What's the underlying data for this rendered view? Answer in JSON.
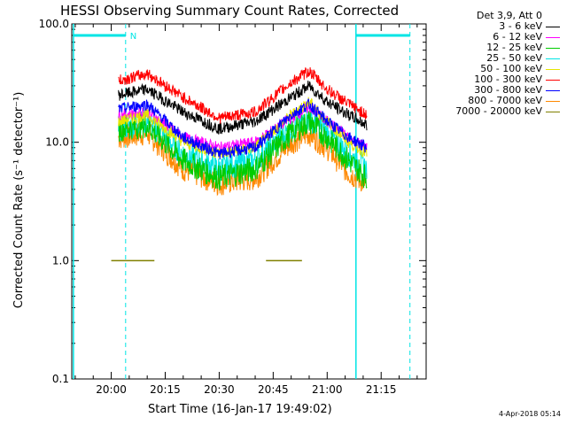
{
  "chart_data": {
    "type": "line",
    "title": "HESSI Observing Summary Count Rates, Corrected",
    "xlabel": "Start Time (16-Jan-17 19:49:02)",
    "ylabel": "Corrected Count Rate (s⁻¹ detector⁻¹)",
    "yscale": "log",
    "ylim": [
      0.1,
      100.0
    ],
    "xlim": [
      "19:49:02",
      "21:27:30"
    ],
    "x_ticks": [
      "20:00",
      "20:15",
      "20:30",
      "20:45",
      "21:00",
      "21:15"
    ],
    "y_ticks": [
      "0.1",
      "1.0",
      "10.0",
      "100.0"
    ],
    "legend_title": "Det 3,9, Att 0",
    "series": [
      {
        "name": "3 - 6 keV",
        "color": "#000000",
        "x": [
          "20:02",
          "20:10",
          "20:20",
          "20:30",
          "20:40",
          "20:50",
          "20:55",
          "21:00",
          "21:06",
          "21:11"
        ],
        "y": [
          25,
          28,
          18,
          13,
          15,
          24,
          30,
          22,
          17,
          14
        ]
      },
      {
        "name": "6 - 12 keV",
        "color": "#ff00ff",
        "x": [
          "20:02",
          "20:10",
          "20:20",
          "20:30",
          "20:40",
          "20:50",
          "20:55",
          "21:00",
          "21:06",
          "21:11"
        ],
        "y": [
          17,
          18,
          11,
          9,
          10,
          16,
          20,
          15,
          11,
          9
        ]
      },
      {
        "name": "12 - 25 keV",
        "color": "#00cc00",
        "x": [
          "20:02",
          "20:10",
          "20:20",
          "20:30",
          "20:40",
          "20:50",
          "20:55",
          "21:00",
          "21:06",
          "21:11"
        ],
        "y": [
          13,
          14,
          7,
          5,
          6,
          12,
          15,
          11,
          7,
          5
        ]
      },
      {
        "name": "25 - 50 keV",
        "color": "#00e5e5",
        "x": [
          "20:02",
          "20:10",
          "20:20",
          "20:30",
          "20:40",
          "20:50",
          "20:55",
          "21:00",
          "21:06",
          "21:11"
        ],
        "y": [
          13,
          15,
          8,
          6,
          7,
          13,
          16,
          12,
          8,
          6
        ]
      },
      {
        "name": "50 - 100 keV",
        "color": "#e5e500",
        "x": [
          "20:02",
          "20:10",
          "20:20",
          "20:30",
          "20:40",
          "20:50",
          "20:55",
          "21:00",
          "21:06",
          "21:11"
        ],
        "y": [
          15,
          17,
          10,
          8,
          9,
          17,
          22,
          15,
          10,
          8
        ]
      },
      {
        "name": "100 - 300 keV",
        "color": "#ff0000",
        "x": [
          "20:02",
          "20:10",
          "20:20",
          "20:30",
          "20:40",
          "20:50",
          "20:55",
          "21:00",
          "21:06",
          "21:11"
        ],
        "y": [
          33,
          38,
          24,
          16,
          18,
          32,
          40,
          28,
          21,
          17
        ]
      },
      {
        "name": "300 - 800 keV",
        "color": "#0000ff",
        "x": [
          "20:02",
          "20:10",
          "20:20",
          "20:30",
          "20:40",
          "20:50",
          "20:55",
          "21:00",
          "21:06",
          "21:11"
        ],
        "y": [
          19,
          21,
          11,
          8,
          9,
          17,
          21,
          15,
          11,
          9
        ]
      },
      {
        "name": "800 - 7000 keV",
        "color": "#ff8800",
        "x": [
          "20:02",
          "20:10",
          "20:20",
          "20:30",
          "20:40",
          "20:50",
          "20:55",
          "21:00",
          "21:06",
          "21:11"
        ],
        "y": [
          11,
          12,
          6,
          4.5,
          5,
          10,
          12,
          9,
          5.5,
          4.5
        ]
      },
      {
        "name": "7000 - 20000 keV",
        "color": "#808000",
        "x": [
          "20:00",
          "20:12",
          "20:43",
          "20:53"
        ],
        "y": [
          1.0,
          1.0,
          1.0,
          1.0
        ]
      }
    ],
    "bars": {
      "color": "#00e5e5",
      "label": "N"
    },
    "footer": "4-Apr-2018 05:14"
  }
}
